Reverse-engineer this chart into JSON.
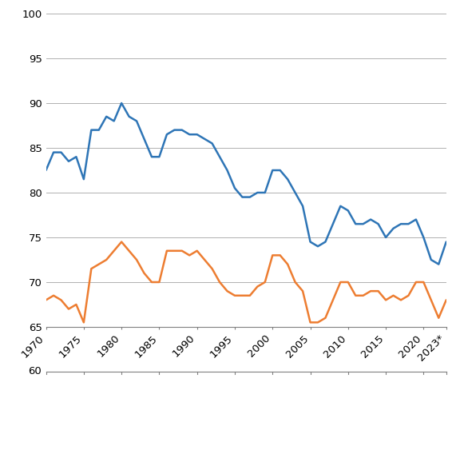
{
  "years": [
    1970,
    1971,
    1972,
    1973,
    1974,
    1975,
    1976,
    1977,
    1978,
    1979,
    1980,
    1981,
    1982,
    1983,
    1984,
    1985,
    1986,
    1987,
    1988,
    1989,
    1990,
    1991,
    1992,
    1993,
    1994,
    1995,
    1996,
    1997,
    1998,
    1999,
    2000,
    2001,
    2002,
    2003,
    2004,
    2005,
    2006,
    2007,
    2008,
    2009,
    2010,
    2011,
    2012,
    2013,
    2014,
    2015,
    2016,
    2017,
    2018,
    2019,
    2020,
    2021,
    2022,
    2023
  ],
  "justert": [
    82.5,
    84.5,
    84.5,
    83.5,
    84.0,
    81.5,
    87.0,
    87.0,
    88.5,
    88.0,
    90.0,
    88.5,
    88.0,
    86.0,
    84.0,
    84.0,
    86.5,
    87.0,
    87.0,
    86.5,
    86.5,
    86.0,
    85.5,
    84.0,
    82.5,
    80.5,
    79.5,
    79.5,
    80.0,
    80.0,
    82.5,
    82.5,
    81.5,
    80.0,
    78.5,
    74.5,
    74.0,
    74.5,
    76.5,
    78.5,
    78.0,
    76.5,
    76.5,
    77.0,
    76.5,
    75.0,
    76.0,
    76.5,
    76.5,
    77.0,
    75.0,
    72.5,
    72.0,
    74.5
  ],
  "ukorrigert": [
    68.0,
    68.5,
    68.0,
    67.0,
    67.5,
    65.5,
    71.5,
    72.0,
    72.5,
    73.5,
    74.5,
    73.5,
    72.5,
    71.0,
    70.0,
    70.0,
    73.5,
    73.5,
    73.5,
    73.0,
    73.5,
    72.5,
    71.5,
    70.0,
    69.0,
    68.5,
    68.5,
    68.5,
    69.5,
    70.0,
    73.0,
    73.0,
    72.0,
    70.0,
    69.0,
    65.5,
    65.5,
    66.0,
    68.0,
    70.0,
    70.0,
    68.5,
    68.5,
    69.0,
    69.0,
    68.0,
    68.5,
    68.0,
    68.5,
    70.0,
    70.0,
    68.0,
    66.0,
    68.0
  ],
  "color_justert": "#2e75b6",
  "color_ukorrigert": "#ed7d31",
  "ylim_plot": [
    65,
    100
  ],
  "ylim_axis": [
    60,
    100
  ],
  "yticks_plot": [
    65,
    70,
    75,
    80,
    85,
    90,
    95,
    100
  ],
  "ytick_labels": [
    "65",
    "70",
    "75",
    "80",
    "85",
    "90",
    "95",
    "100"
  ],
  "ytick_60": 60,
  "xtick_years": [
    1970,
    1975,
    1980,
    1985,
    1990,
    1995,
    2000,
    2005,
    2010,
    2015,
    2020
  ],
  "xlabel_last": "2023*",
  "line_width": 1.8,
  "bg_color": "#ffffff",
  "grid_color": "#b0b0b0",
  "tick_fontsize": 9.5,
  "legend_fontsize": 9.5
}
